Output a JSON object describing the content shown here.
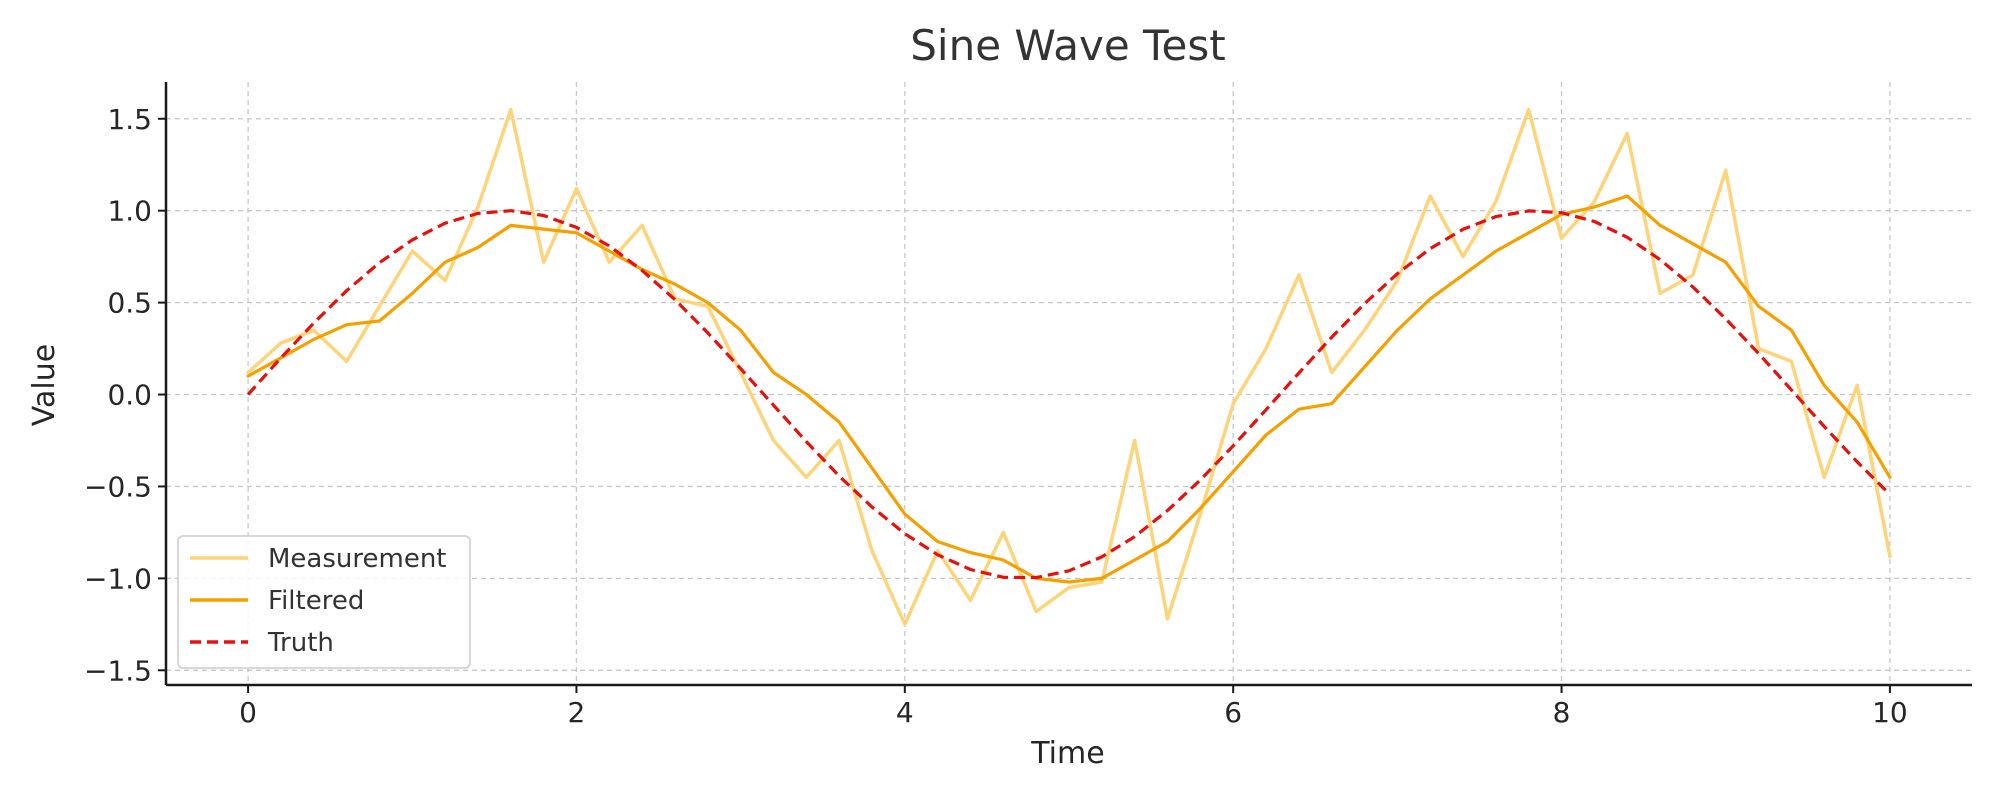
{
  "chart_data": {
    "type": "line",
    "title": "Sine Wave Test",
    "xlabel": "Time",
    "ylabel": "Value",
    "xlim": [
      -0.5,
      10.5
    ],
    "ylim": [
      -1.58,
      1.7
    ],
    "x_ticks": [
      0,
      2,
      4,
      6,
      8,
      10
    ],
    "x_tick_labels": [
      "0",
      "2",
      "4",
      "6",
      "8",
      "10"
    ],
    "y_ticks": [
      1.5,
      1.0,
      0.5,
      0.0,
      -0.5,
      -1.0,
      -1.5
    ],
    "y_tick_labels": [
      "1.5",
      "1.0",
      "0.5",
      "0.0",
      "−0.5",
      "−1.0",
      "−1.5"
    ],
    "grid": true,
    "legend_position": "lower-left",
    "x": [
      0,
      0.2,
      0.4,
      0.6,
      0.8,
      1.0,
      1.2,
      1.4,
      1.6,
      1.8,
      2.0,
      2.2,
      2.4,
      2.6,
      2.8,
      3.0,
      3.2,
      3.4,
      3.6,
      3.8,
      4.0,
      4.2,
      4.4,
      4.6,
      4.8,
      5.0,
      5.2,
      5.4,
      5.6,
      5.8,
      6.0,
      6.2,
      6.4,
      6.6,
      6.8,
      7.0,
      7.2,
      7.4,
      7.6,
      7.8,
      8.0,
      8.2,
      8.4,
      8.6,
      8.8,
      9.0,
      9.2,
      9.4,
      9.6,
      9.8,
      10.0
    ],
    "series": [
      {
        "name": "Measurement",
        "color": "#fdd47a",
        "style": "solid",
        "values": [
          0.12,
          0.28,
          0.35,
          0.18,
          0.48,
          0.78,
          0.62,
          1.02,
          1.55,
          0.72,
          1.12,
          0.72,
          0.92,
          0.52,
          0.48,
          0.12,
          -0.25,
          -0.45,
          -0.25,
          -0.85,
          -1.25,
          -0.85,
          -1.12,
          -0.75,
          -1.18,
          -1.05,
          -1.02,
          -0.25,
          -1.22,
          -0.65,
          -0.05,
          0.25,
          0.65,
          0.12,
          0.35,
          0.62,
          1.08,
          0.75,
          1.05,
          1.55,
          0.85,
          1.05,
          1.42,
          0.55,
          0.65,
          1.22,
          0.25,
          0.18,
          -0.45,
          0.05,
          -0.88
        ]
      },
      {
        "name": "Filtered",
        "color": "#f5a000",
        "style": "solid",
        "values": [
          0.1,
          0.2,
          0.3,
          0.38,
          0.4,
          0.55,
          0.72,
          0.8,
          0.92,
          0.9,
          0.88,
          0.78,
          0.68,
          0.6,
          0.5,
          0.35,
          0.12,
          0.0,
          -0.15,
          -0.4,
          -0.65,
          -0.8,
          -0.86,
          -0.9,
          -1.0,
          -1.02,
          -1.0,
          -0.9,
          -0.8,
          -0.62,
          -0.42,
          -0.22,
          -0.08,
          -0.05,
          0.15,
          0.35,
          0.52,
          0.65,
          0.78,
          0.88,
          0.98,
          1.02,
          1.08,
          0.92,
          0.82,
          0.72,
          0.48,
          0.35,
          0.05,
          -0.15,
          -0.45
        ]
      },
      {
        "name": "Truth",
        "color": "#e8100c",
        "style": "dashed",
        "values": [
          0.0,
          0.199,
          0.389,
          0.565,
          0.717,
          0.841,
          0.932,
          0.985,
          1.0,
          0.974,
          0.909,
          0.808,
          0.675,
          0.516,
          0.335,
          0.141,
          -0.058,
          -0.256,
          -0.443,
          -0.612,
          -0.757,
          -0.872,
          -0.952,
          -0.994,
          -0.996,
          -0.959,
          -0.883,
          -0.773,
          -0.631,
          -0.465,
          -0.279,
          -0.083,
          0.117,
          0.312,
          0.494,
          0.657,
          0.794,
          0.899,
          0.968,
          0.999,
          0.989,
          0.941,
          0.855,
          0.734,
          0.585,
          0.412,
          0.223,
          0.025,
          -0.174,
          -0.366,
          -0.544
        ]
      }
    ]
  }
}
